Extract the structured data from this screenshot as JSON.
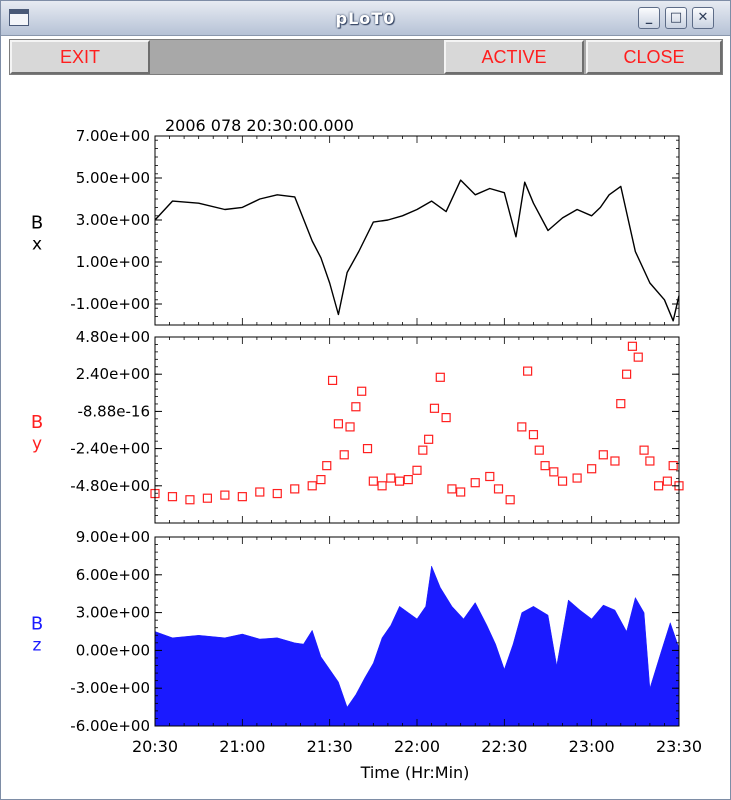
{
  "window": {
    "title": "pLoT0",
    "controls": {
      "minimize": "_",
      "maximize": "□",
      "close": "✕"
    }
  },
  "toolbar": {
    "exit_label": "EXIT",
    "active_label": "ACTIVE",
    "close_label": "CLOSE"
  },
  "chart_data": {
    "type": "line",
    "timestamp": "2006 078 20:30:00.000",
    "xlabel": "Time (Hr:Min)",
    "x_tick_labels": [
      "20:30",
      "21:00",
      "21:30",
      "22:00",
      "22:30",
      "23:00",
      "23:30"
    ],
    "xlim": [
      "20:30",
      "23:30"
    ],
    "grid": false,
    "panels": [
      {
        "label": "B",
        "subscript": "x",
        "style": "line",
        "color": "#000000",
        "ylim": [
          -2.0,
          7.0
        ],
        "y_tick_values": [
          -1.0,
          1.0,
          3.0,
          5.0,
          7.0
        ],
        "y_tick_labels": [
          "-1.00e+00",
          "1.00e+00",
          "3.00e+00",
          "5.00e+00",
          "7.00e+00"
        ],
        "x": [
          "20:30",
          "20:36",
          "20:45",
          "20:54",
          "21:00",
          "21:06",
          "21:12",
          "21:18",
          "21:24",
          "21:27",
          "21:30",
          "21:33",
          "21:36",
          "21:40",
          "21:45",
          "21:50",
          "21:55",
          "22:00",
          "22:05",
          "22:10",
          "22:15",
          "22:20",
          "22:25",
          "22:30",
          "22:34",
          "22:37",
          "22:40",
          "22:45",
          "22:50",
          "22:55",
          "23:00",
          "23:03",
          "23:06",
          "23:10",
          "23:15",
          "23:20",
          "23:25",
          "23:28",
          "23:30"
        ],
        "values": [
          3.0,
          3.9,
          3.8,
          3.5,
          3.6,
          4.0,
          4.2,
          4.1,
          2.0,
          1.2,
          0.0,
          -1.5,
          0.5,
          1.5,
          2.9,
          3.0,
          3.2,
          3.5,
          3.9,
          3.4,
          4.9,
          4.2,
          4.5,
          4.3,
          2.2,
          4.8,
          3.8,
          2.5,
          3.1,
          3.5,
          3.2,
          3.6,
          4.2,
          4.6,
          1.5,
          0.0,
          -0.8,
          -1.8,
          -0.6
        ]
      },
      {
        "label": "B",
        "subscript": "y",
        "style": "square-markers",
        "color": "#ff2020",
        "ylim": [
          -7.2,
          4.8
        ],
        "y_tick_values": [
          -4.8,
          -2.4,
          0.0,
          2.4,
          4.8
        ],
        "y_tick_labels": [
          "-4.80e+00",
          "-2.40e+00",
          "-8.88e-16",
          "2.40e+00",
          "4.80e+00"
        ],
        "x": [
          "20:30",
          "20:36",
          "20:42",
          "20:48",
          "20:54",
          "21:00",
          "21:06",
          "21:12",
          "21:18",
          "21:24",
          "21:27",
          "21:29",
          "21:31",
          "21:33",
          "21:35",
          "21:37",
          "21:39",
          "21:41",
          "21:43",
          "21:45",
          "21:48",
          "21:51",
          "21:54",
          "21:57",
          "22:00",
          "22:02",
          "22:04",
          "22:06",
          "22:08",
          "22:10",
          "22:12",
          "22:15",
          "22:20",
          "22:25",
          "22:28",
          "22:32",
          "22:36",
          "22:38",
          "22:40",
          "22:42",
          "22:44",
          "22:47",
          "22:50",
          "22:55",
          "23:00",
          "23:04",
          "23:08",
          "23:10",
          "23:12",
          "23:14",
          "23:16",
          "23:18",
          "23:20",
          "23:23",
          "23:26",
          "23:28",
          "23:30"
        ],
        "values": [
          -5.3,
          -5.5,
          -5.7,
          -5.6,
          -5.4,
          -5.5,
          -5.2,
          -5.3,
          -5.0,
          -4.8,
          -4.4,
          -3.5,
          2.0,
          -0.8,
          -2.8,
          -1.0,
          0.3,
          1.3,
          -2.4,
          -4.5,
          -4.8,
          -4.3,
          -4.5,
          -4.4,
          -3.8,
          -2.5,
          -1.8,
          0.2,
          2.2,
          -0.4,
          -5.0,
          -5.2,
          -4.6,
          -4.2,
          -5.0,
          -5.7,
          -1.0,
          2.6,
          -1.5,
          -2.5,
          -3.5,
          -3.9,
          -4.5,
          -4.3,
          -3.7,
          -2.8,
          -3.2,
          0.5,
          2.4,
          4.2,
          3.5,
          -2.5,
          -3.2,
          -4.8,
          -4.5,
          -3.5,
          -4.8
        ]
      },
      {
        "label": "B",
        "subscript": "z",
        "style": "filled-histogram",
        "color": "#1a1aff",
        "ylim": [
          -6.0,
          9.0
        ],
        "y_tick_values": [
          -6.0,
          -3.0,
          0.0,
          3.0,
          6.0,
          9.0
        ],
        "y_tick_labels": [
          "-6.00e+00",
          "-3.00e+00",
          "0.00e+00",
          "3.00e+00",
          "6.00e+00",
          "9.00e+00"
        ],
        "x": [
          "20:30",
          "20:36",
          "20:45",
          "20:54",
          "21:00",
          "21:06",
          "21:12",
          "21:18",
          "21:21",
          "21:24",
          "21:27",
          "21:30",
          "21:33",
          "21:36",
          "21:39",
          "21:42",
          "21:45",
          "21:48",
          "21:51",
          "21:54",
          "21:57",
          "22:00",
          "22:03",
          "22:05",
          "22:08",
          "22:12",
          "22:16",
          "22:20",
          "22:24",
          "22:27",
          "22:30",
          "22:33",
          "22:36",
          "22:40",
          "22:45",
          "22:48",
          "22:52",
          "22:56",
          "23:00",
          "23:04",
          "23:08",
          "23:12",
          "23:15",
          "23:18",
          "23:20",
          "23:24",
          "23:27",
          "23:30"
        ],
        "values": [
          1.5,
          1.0,
          1.2,
          1.0,
          1.3,
          0.9,
          1.0,
          0.6,
          0.5,
          1.6,
          -0.5,
          -1.5,
          -2.5,
          -4.5,
          -3.5,
          -2.2,
          -1.0,
          1.0,
          2.0,
          3.5,
          3.0,
          2.5,
          3.5,
          6.7,
          5.0,
          3.5,
          2.5,
          3.8,
          2.0,
          0.5,
          -1.5,
          0.5,
          3.0,
          3.5,
          2.8,
          -1.2,
          4.0,
          3.2,
          2.5,
          3.6,
          3.2,
          1.5,
          4.2,
          3.0,
          -3.0,
          0.0,
          2.2,
          0.2
        ]
      }
    ]
  }
}
